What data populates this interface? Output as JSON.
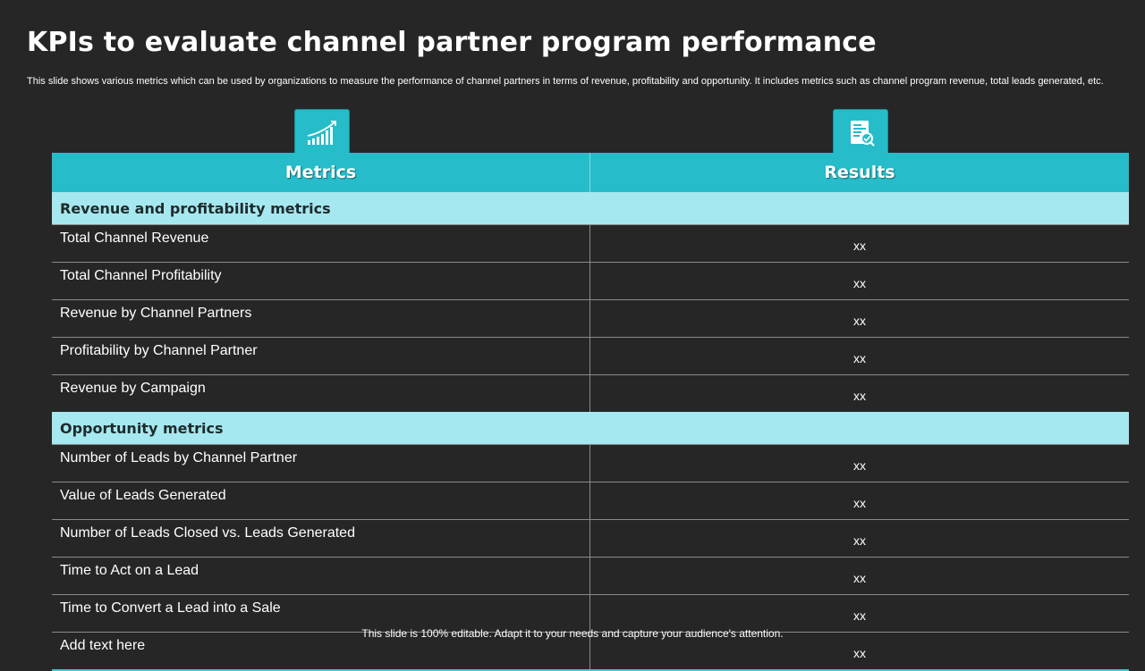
{
  "title": "KPIs to evaluate channel partner program performance",
  "subtitle": "This slide shows various metrics which can be used by organizations to measure the performance of channel partners in terms of revenue, profitability and opportunity. It includes metrics such as channel program revenue, total leads generated, etc.",
  "icons": {
    "metrics": "bar-chart-growth-icon",
    "results": "report-check-icon"
  },
  "colors": {
    "accent": "#26bcc9",
    "section": "#a6e8ef",
    "background": "#262626"
  },
  "table": {
    "headers": {
      "metrics": "Metrics",
      "results": "Results"
    },
    "sections": [
      {
        "title": "Revenue and profitability metrics",
        "rows": [
          {
            "metric": "Total Channel Revenue",
            "result": "xx"
          },
          {
            "metric": "Total Channel Profitability",
            "result": "xx"
          },
          {
            "metric": "Revenue  by Channel Partners",
            "result": "xx"
          },
          {
            "metric": "Profitability by Channel Partner",
            "result": "xx"
          },
          {
            "metric": "Revenue  by Campaign",
            "result": "xx"
          }
        ]
      },
      {
        "title": "Opportunity metrics",
        "rows": [
          {
            "metric": "Number  of Leads by Channel Partner",
            "result": "xx"
          },
          {
            "metric": "Value of Leads Generated",
            "result": "xx"
          },
          {
            "metric": "Number  of Leads Closed vs.  Leads Generated",
            "result": "xx"
          },
          {
            "metric": "Time to Act on a Lead",
            "result": "xx"
          },
          {
            "metric": "Time to Convert  a Lead into a Sale",
            "result": "xx"
          },
          {
            "metric": "Add text here",
            "result": "xx"
          }
        ]
      }
    ]
  },
  "footer": "This slide is 100% editable. Adapt it to your needs and capture your audience's attention."
}
